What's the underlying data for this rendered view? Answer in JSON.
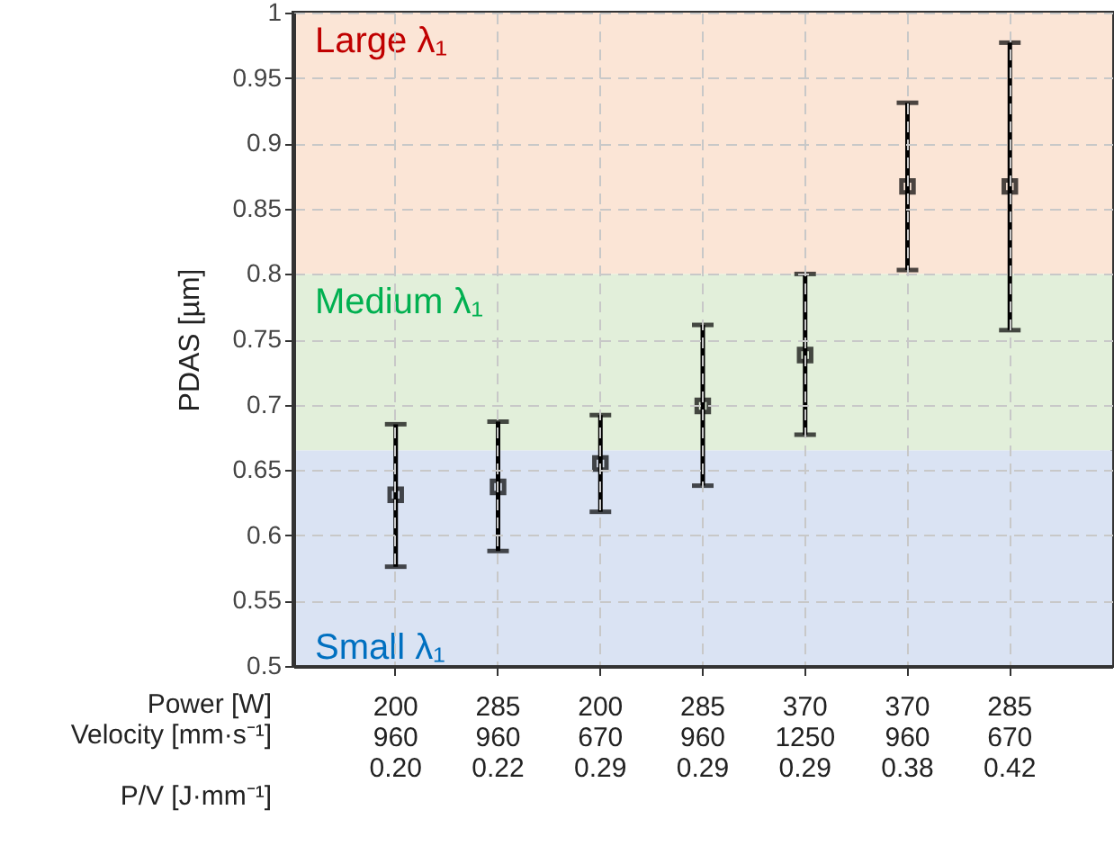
{
  "chart_data": {
    "type": "scatter",
    "ylabel": "PDAS  [µm]",
    "categories": [
      "200\n960\n\n0.20",
      "285\n960\n\n0.22",
      "200\n670\n\n0.29",
      "285\n960\n\n0.29",
      "370\n1250\n\n0.29",
      "370\n960\n\n0.38",
      "285\n670\n\n0.42"
    ],
    "series": [
      {
        "color": "#000000",
        "values": [
          0.631,
          0.637,
          0.655,
          0.699,
          0.738,
          0.867,
          0.867
        ],
        "errors": [
          [
            0.576,
            0.685
          ],
          [
            0.588,
            0.687
          ],
          [
            0.618,
            0.692
          ],
          [
            0.638,
            0.761
          ],
          [
            0.677,
            0.8
          ],
          [
            0.803,
            0.931
          ],
          [
            0.757,
            0.977
          ]
        ]
      }
    ],
    "annotations": [
      "Power [W]",
      "Velocity [mm·s⁻¹]",
      "P/V [J·mm⁻¹]"
    ],
    "bands": [
      {
        "axis": "y",
        "from": 0.8,
        "to": 1.0,
        "label": "Large λ₁",
        "color": "#fbe5d6"
      },
      {
        "axis": "y",
        "from": 0.665,
        "to": 0.8,
        "label": "Medium λ₁",
        "color": "#e2efda"
      },
      {
        "axis": "y",
        "from": 0.5,
        "to": 0.665,
        "label": "Small λ₁",
        "color": "#dae3f3"
      }
    ],
    "ylim": [
      0.5,
      1
    ],
    "yticks": [
      0.5,
      0.55,
      0.6,
      0.65,
      0.7,
      0.75,
      0.8,
      0.85,
      0.9,
      0.95,
      1
    ],
    "grid": true,
    "marker": "square"
  }
}
